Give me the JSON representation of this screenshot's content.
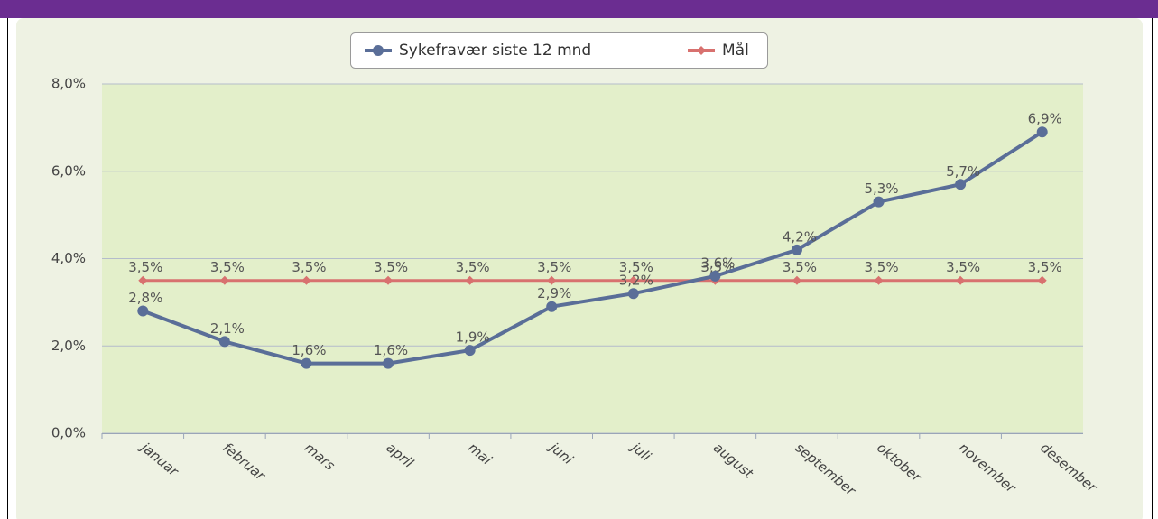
{
  "chart_data": {
    "type": "line",
    "categories": [
      "januar",
      "februar",
      "mars",
      "april",
      "mai",
      "juni",
      "juli",
      "august",
      "september",
      "oktober",
      "november",
      "desember"
    ],
    "series": [
      {
        "name": "Sykefravær siste 12 mnd",
        "color": "#5a6e98",
        "values": [
          2.8,
          2.1,
          1.6,
          1.6,
          1.9,
          2.9,
          3.2,
          3.6,
          4.2,
          5.3,
          5.7,
          6.9
        ],
        "value_labels": [
          "2,8%",
          "2,1%",
          "1,6%",
          "1,6%",
          "1,9%",
          "2,9%",
          "3,2%",
          "3,6%",
          "4,2%",
          "5,3%",
          "5,7%",
          "6,9%"
        ]
      },
      {
        "name": "Mål",
        "color": "#d8716f",
        "values": [
          3.5,
          3.5,
          3.5,
          3.5,
          3.5,
          3.5,
          3.5,
          3.5,
          3.5,
          3.5,
          3.5,
          3.5
        ],
        "value_labels": [
          "3,5%",
          "3,5%",
          "3,5%",
          "3,5%",
          "3,5%",
          "3,5%",
          "3,5%",
          "3,5%",
          "3,5%",
          "3,5%",
          "3,5%",
          "3,5%"
        ]
      }
    ],
    "ylim": [
      0,
      8
    ],
    "yticks": [
      {
        "value": 0,
        "label": "0,0%"
      },
      {
        "value": 2,
        "label": "2,0%"
      },
      {
        "value": 4,
        "label": "4,0%"
      },
      {
        "value": 6,
        "label": "6,0%"
      },
      {
        "value": 8,
        "label": "8,0%"
      }
    ],
    "grid": true,
    "legend": "top"
  }
}
